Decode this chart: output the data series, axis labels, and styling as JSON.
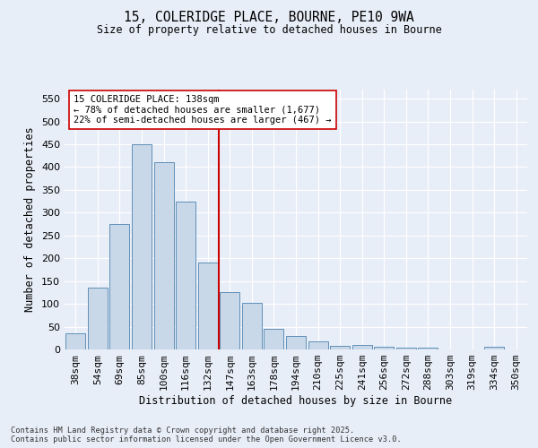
{
  "title_line1": "15, COLERIDGE PLACE, BOURNE, PE10 9WA",
  "title_line2": "Size of property relative to detached houses in Bourne",
  "xlabel": "Distribution of detached houses by size in Bourne",
  "ylabel": "Number of detached properties",
  "categories": [
    "38sqm",
    "54sqm",
    "69sqm",
    "85sqm",
    "100sqm",
    "116sqm",
    "132sqm",
    "147sqm",
    "163sqm",
    "178sqm",
    "194sqm",
    "210sqm",
    "225sqm",
    "241sqm",
    "256sqm",
    "272sqm",
    "288sqm",
    "303sqm",
    "319sqm",
    "334sqm",
    "350sqm"
  ],
  "values": [
    35,
    135,
    275,
    450,
    410,
    325,
    190,
    125,
    102,
    45,
    30,
    18,
    8,
    9,
    5,
    4,
    4,
    0,
    0,
    6,
    0
  ],
  "bar_color": "#c8d8e8",
  "bar_edge_color": "#6090b8",
  "annotation_text": "15 COLERIDGE PLACE: 138sqm\n← 78% of detached houses are smaller (1,677)\n22% of semi-detached houses are larger (467) →",
  "vline_x_index": 6.5,
  "vline_color": "#cc0000",
  "annotation_box_color": "#ffffff",
  "annotation_box_edge_color": "#cc0000",
  "ylim": [
    0,
    570
  ],
  "yticks": [
    0,
    50,
    100,
    150,
    200,
    250,
    300,
    350,
    400,
    450,
    500,
    550
  ],
  "background_color": "#e8eef8",
  "grid_color": "#ffffff",
  "footer_line1": "Contains HM Land Registry data © Crown copyright and database right 2025.",
  "footer_line2": "Contains public sector information licensed under the Open Government Licence v3.0."
}
